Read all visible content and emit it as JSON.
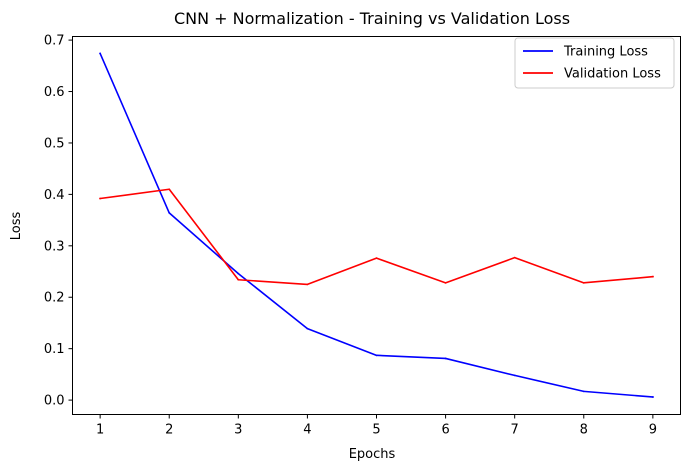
{
  "chart_data": {
    "type": "line",
    "title": "CNN + Normalization - Training vs Validation Loss",
    "xlabel": "Epochs",
    "ylabel": "Loss",
    "x": [
      1,
      2,
      3,
      4,
      5,
      6,
      7,
      8,
      9
    ],
    "xticks": [
      "1",
      "2",
      "3",
      "4",
      "5",
      "6",
      "7",
      "8",
      "9"
    ],
    "yticks": [
      "0.0",
      "0.1",
      "0.2",
      "0.3",
      "0.4",
      "0.5",
      "0.6",
      "0.7"
    ],
    "xlim": [
      0.6,
      9.4
    ],
    "ylim": [
      -0.028,
      0.707
    ],
    "grid": false,
    "legend_position": "top-right",
    "series": [
      {
        "name": "Training Loss",
        "color": "#0000ff",
        "values": [
          0.674,
          0.364,
          0.246,
          0.139,
          0.087,
          0.081,
          0.048,
          0.017,
          0.006
        ]
      },
      {
        "name": "Validation Loss",
        "color": "#ff0000",
        "values": [
          0.392,
          0.41,
          0.234,
          0.225,
          0.276,
          0.228,
          0.277,
          0.228,
          0.24
        ]
      }
    ]
  }
}
